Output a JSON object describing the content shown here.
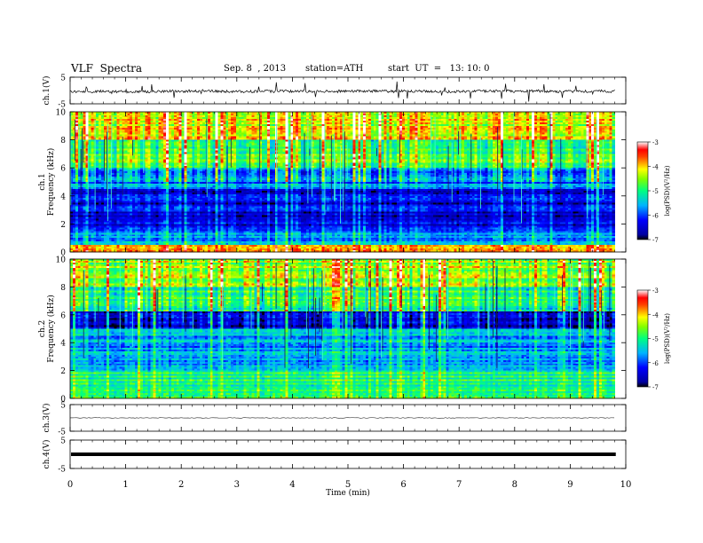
{
  "header": {
    "title": "VLF  Spectra",
    "date": "Sep. 8  , 2013",
    "station": "station=ATH",
    "start": "start  UT  =   13: 10: 0"
  },
  "chart_data": [
    {
      "type": "line",
      "panel": "ch1-waveform",
      "ylabel": "ch.1(V)",
      "ylim": [
        -5,
        5
      ],
      "yticks": [
        "5",
        "-5"
      ],
      "xlim": [
        0,
        10
      ],
      "baseline_approx": 0,
      "color": "#000000"
    },
    {
      "type": "heatmap",
      "panel": "ch1-spectrogram",
      "ylabel": "ch.1\nFrequency  (kHz)",
      "ylim": [
        0,
        10
      ],
      "yticks": [
        "0",
        "2",
        "4",
        "6",
        "8",
        "10"
      ],
      "xlim": [
        0,
        10
      ],
      "data_end_min": 9.8,
      "colorbar": {
        "label": "log(PSD)(V²/Hz)",
        "range": [
          -7,
          -3
        ],
        "ticks": [
          "-3",
          "-4",
          "-5",
          "-6",
          "-7"
        ]
      },
      "band_levels_approx": [
        {
          "freq_khz": [
            0,
            0.5
          ],
          "level": -3.8
        },
        {
          "freq_khz": [
            0.5,
            1.5
          ],
          "level": -5.6
        },
        {
          "freq_khz": [
            1.5,
            4.5
          ],
          "level": -6.4
        },
        {
          "freq_khz": [
            4.5,
            6
          ],
          "level": -5.8
        },
        {
          "freq_khz": [
            6,
            8
          ],
          "level": -4.8
        },
        {
          "freq_khz": [
            8,
            10
          ],
          "level": -4.2
        }
      ]
    },
    {
      "type": "heatmap",
      "panel": "ch2-spectrogram",
      "ylabel": "ch.2\nFrequency  (kHz)",
      "ylim": [
        0,
        10
      ],
      "yticks": [
        "0",
        "2",
        "4",
        "6",
        "8",
        "10"
      ],
      "xlim": [
        0,
        10
      ],
      "data_end_min": 9.8,
      "colorbar": {
        "label": "log(PSD)(V²/Hz)",
        "range": [
          -7,
          -3
        ],
        "ticks": [
          "-3",
          "-4",
          "-5",
          "-6",
          "-7"
        ]
      },
      "band_levels_approx": [
        {
          "freq_khz": [
            0,
            2
          ],
          "level": -5.0
        },
        {
          "freq_khz": [
            2,
            5
          ],
          "level": -5.6
        },
        {
          "freq_khz": [
            5,
            6.3
          ],
          "level": -6.5
        },
        {
          "freq_khz": [
            6.3,
            8
          ],
          "level": -5.0
        },
        {
          "freq_khz": [
            8,
            10
          ],
          "level": -4.4
        }
      ]
    },
    {
      "type": "line",
      "panel": "ch3-waveform",
      "ylabel": "ch.3(V)",
      "ylim": [
        -5,
        5
      ],
      "yticks": [
        "5",
        "-5"
      ],
      "xlim": [
        0,
        10
      ],
      "baseline_approx": 0,
      "color": "#000000"
    },
    {
      "type": "line",
      "panel": "ch4-waveform",
      "ylabel": "ch.4(V)",
      "ylim": [
        -5,
        5
      ],
      "yticks": [
        "5",
        "-5"
      ],
      "xlim": [
        0,
        10
      ],
      "baseline_approx": 0,
      "color": "#000000"
    }
  ],
  "xaxis": {
    "label": "Time  (min)",
    "range": [
      0,
      10
    ],
    "ticks": [
      "0",
      "1",
      "2",
      "3",
      "4",
      "5",
      "6",
      "7",
      "8",
      "9",
      "10"
    ]
  }
}
